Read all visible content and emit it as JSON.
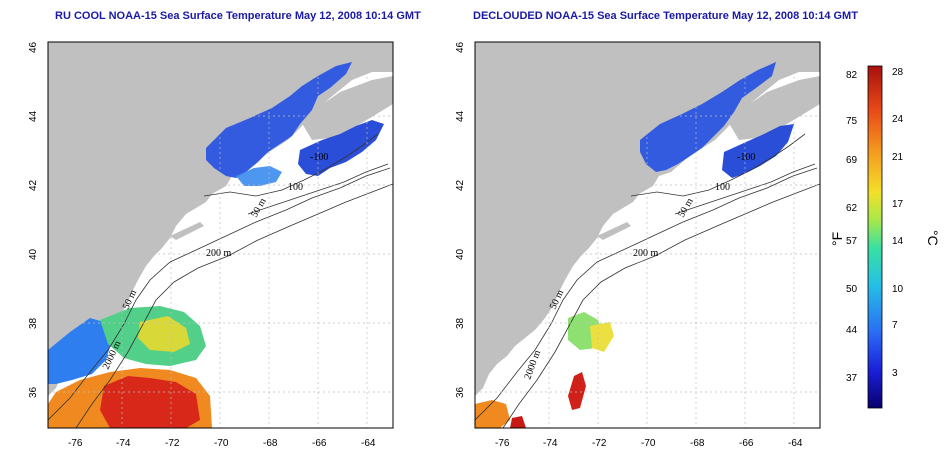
{
  "panels": [
    {
      "title": "RU COOL NOAA-15 Sea Surface Temperature May 12, 2008 10:14 GMT",
      "contour_labels": [
        "-100",
        "100",
        "50 m",
        "200 m",
        "50 m",
        "2000 m"
      ]
    },
    {
      "title": "DECLOUDED NOAA-15 Sea Surface Temperature May 12, 2008 10:14 GMT",
      "contour_labels": [
        "-100",
        "100",
        "50 m",
        "200 m",
        "50 m",
        "2000 m"
      ]
    }
  ],
  "axes": {
    "x_ticks": [
      "-76",
      "-74",
      "-72",
      "-70",
      "-68",
      "-66",
      "-64"
    ],
    "y_ticks": [
      "46",
      "44",
      "42",
      "40",
      "38",
      "36"
    ]
  },
  "colorbar": {
    "fahrenheit_ticks": [
      "82",
      "75",
      "69",
      "62",
      "57",
      "50",
      "44",
      "37"
    ],
    "celsius_ticks": [
      "28",
      "24",
      "21",
      "17",
      "14",
      "10",
      "7",
      "3"
    ],
    "fahrenheit_unit": "°F",
    "celsius_unit": "°C",
    "colors": [
      "#08006e",
      "#1a20d8",
      "#2a6cf5",
      "#25c0e6",
      "#3be0a0",
      "#a8e84a",
      "#f2e02a",
      "#f5a020",
      "#e84a18",
      "#a8100e"
    ]
  },
  "map_colors": {
    "land": "#c0c0c0",
    "ocean": "#ffffff",
    "grid": "#bbbbbb"
  }
}
